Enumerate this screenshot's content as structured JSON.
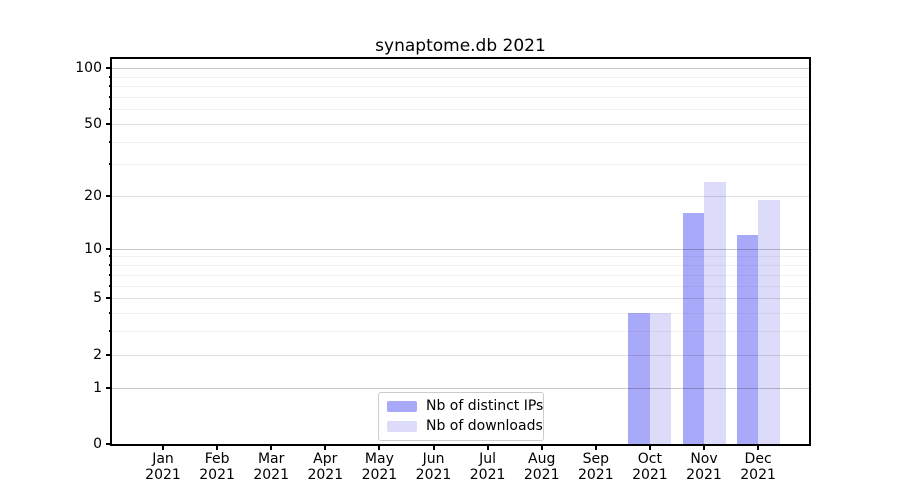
{
  "chart_data": {
    "type": "bar",
    "title": "synaptome.db 2021",
    "categories": [
      {
        "month": "Jan",
        "year": "2021"
      },
      {
        "month": "Feb",
        "year": "2021"
      },
      {
        "month": "Mar",
        "year": "2021"
      },
      {
        "month": "Apr",
        "year": "2021"
      },
      {
        "month": "May",
        "year": "2021"
      },
      {
        "month": "Jun",
        "year": "2021"
      },
      {
        "month": "Jul",
        "year": "2021"
      },
      {
        "month": "Aug",
        "year": "2021"
      },
      {
        "month": "Sep",
        "year": "2021"
      },
      {
        "month": "Oct",
        "year": "2021"
      },
      {
        "month": "Nov",
        "year": "2021"
      },
      {
        "month": "Dec",
        "year": "2021"
      }
    ],
    "series": [
      {
        "name": "Nb of distinct IPs",
        "color": "#a9a9fa",
        "values": [
          0,
          0,
          0,
          0,
          0,
          0,
          0,
          0,
          0,
          4,
          16,
          12
        ]
      },
      {
        "name": "Nb of downloads",
        "color": "#dcdcfa",
        "values": [
          0,
          0,
          0,
          0,
          0,
          0,
          0,
          0,
          0,
          4,
          24,
          19
        ]
      }
    ],
    "yaxis": {
      "scale": "log1p",
      "labeled_ticks": [
        0,
        1,
        2,
        5,
        10,
        20,
        50,
        100
      ],
      "power_ticks": [
        1,
        10,
        100
      ],
      "minor_ticks": [
        3,
        4,
        6,
        7,
        8,
        9,
        30,
        40,
        60,
        70,
        80,
        90
      ],
      "ylim": [
        0,
        112
      ]
    },
    "legend": {
      "position": "inside-bottom-center",
      "entries": [
        "Nb of distinct IPs",
        "Nb of downloads"
      ]
    },
    "grid": true,
    "colors": {
      "background": "#ffffff",
      "spine": "#000000",
      "text": "#000000",
      "grid_power": "rgba(0,0,0,0.21)",
      "grid_labeled": "rgba(0,0,0,0.12)",
      "grid_minor": "rgba(0,0,0,0.05)"
    }
  }
}
